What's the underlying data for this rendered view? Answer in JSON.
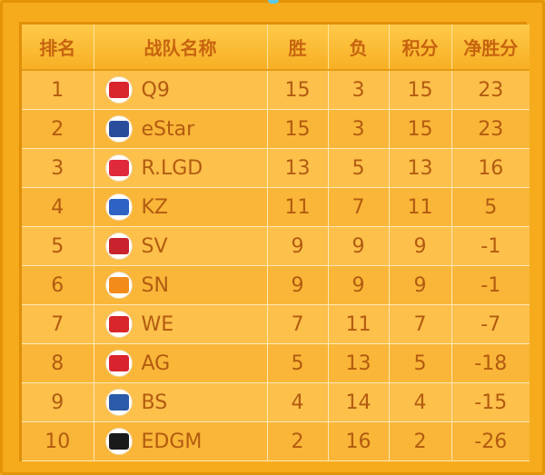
{
  "headers": [
    "排名",
    "战队名称",
    "胜",
    "负",
    "积分",
    "净胜分"
  ],
  "rows": [
    {
      "rank": "1",
      "team": "Q9",
      "logo": "q9-logo-icon",
      "logo_color": "#d9262c",
      "win": "15",
      "loss": "3",
      "points": "15",
      "diff": "23"
    },
    {
      "rank": "2",
      "team": "eStar",
      "logo": "estar-logo-icon",
      "logo_color": "#2a4d9b",
      "win": "15",
      "loss": "3",
      "points": "15",
      "diff": "23"
    },
    {
      "rank": "3",
      "team": "R.LGD",
      "logo": "rlgd-logo-icon",
      "logo_color": "#e0293a",
      "win": "13",
      "loss": "5",
      "points": "13",
      "diff": "16"
    },
    {
      "rank": "4",
      "team": "KZ",
      "logo": "kz-logo-icon",
      "logo_color": "#2e63c4",
      "win": "11",
      "loss": "7",
      "points": "11",
      "diff": "5"
    },
    {
      "rank": "5",
      "team": "SV",
      "logo": "sv-logo-icon",
      "logo_color": "#c8232c",
      "win": "9",
      "loss": "9",
      "points": "9",
      "diff": "-1"
    },
    {
      "rank": "6",
      "team": "SN",
      "logo": "sn-logo-icon",
      "logo_color": "#f28b1a",
      "win": "9",
      "loss": "9",
      "points": "9",
      "diff": "-1"
    },
    {
      "rank": "7",
      "team": "WE",
      "logo": "we-logo-icon",
      "logo_color": "#d8262a",
      "win": "7",
      "loss": "11",
      "points": "7",
      "diff": "-7"
    },
    {
      "rank": "8",
      "team": "AG",
      "logo": "ag-logo-icon",
      "logo_color": "#d9232e",
      "win": "5",
      "loss": "13",
      "points": "5",
      "diff": "-18"
    },
    {
      "rank": "9",
      "team": "BS",
      "logo": "bs-logo-icon",
      "logo_color": "#2b5aa8",
      "win": "4",
      "loss": "14",
      "points": "4",
      "diff": "-15"
    },
    {
      "rank": "10",
      "team": "EDGM",
      "logo": "edgm-logo-icon",
      "logo_color": "#1a1a1a",
      "win": "2",
      "loss": "16",
      "points": "2",
      "diff": "-26"
    }
  ]
}
